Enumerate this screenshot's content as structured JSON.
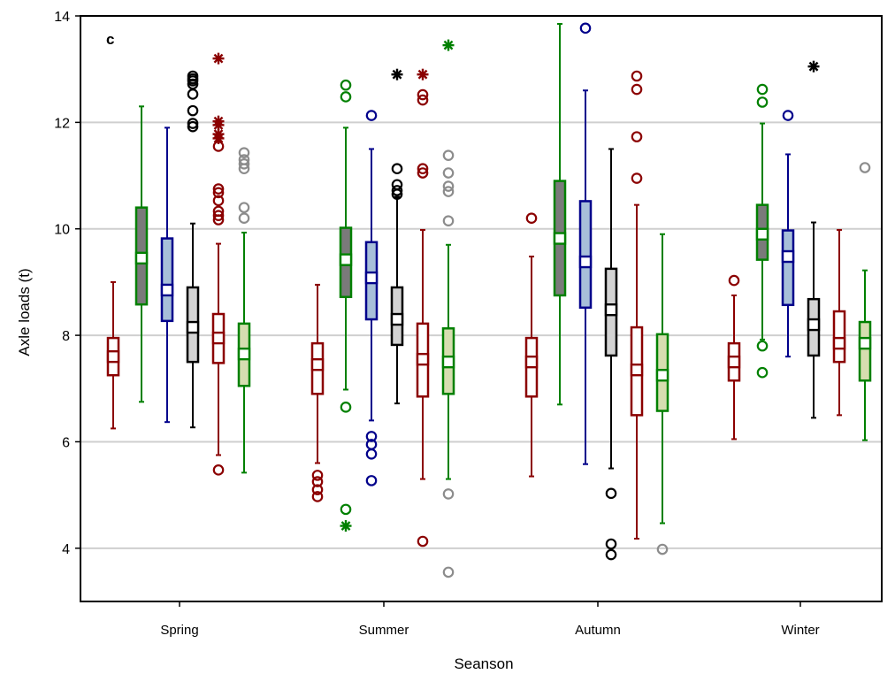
{
  "chart_data": {
    "type": "boxplot",
    "panel_label": "c",
    "xlabel": "Seanson",
    "ylabel": "Axle loads (t)",
    "ylim": [
      3,
      14
    ],
    "yticks": [
      4,
      6,
      8,
      10,
      12,
      14
    ],
    "grid": true,
    "categories": [
      "Spring",
      "Summer",
      "Autumn",
      "Winter"
    ],
    "series": [
      {
        "color": "#8b0000",
        "fill": "#ffffff",
        "boxes": [
          {
            "median": 7.6,
            "q1": 7.25,
            "q3": 7.95,
            "whisker_low": 6.25,
            "whisker_high": 9.0,
            "outliers": [],
            "extremes": []
          },
          {
            "median": 7.45,
            "q1": 6.9,
            "q3": 7.85,
            "whisker_low": 5.6,
            "whisker_high": 8.95,
            "outliers": [
              4.97,
              5.1,
              5.25,
              5.37
            ],
            "extremes": []
          },
          {
            "median": 7.5,
            "q1": 6.85,
            "q3": 7.95,
            "whisker_low": 5.35,
            "whisker_high": 9.48,
            "outliers": [
              10.2
            ],
            "extremes": []
          },
          {
            "median": 7.5,
            "q1": 7.15,
            "q3": 7.85,
            "whisker_low": 6.05,
            "whisker_high": 8.75,
            "outliers": [
              9.03
            ],
            "extremes": []
          }
        ]
      },
      {
        "color": "#008000",
        "fill": "#7a7a7a",
        "boxes": [
          {
            "median": 9.45,
            "q1": 8.58,
            "q3": 10.4,
            "whisker_low": 6.75,
            "whisker_high": 12.3,
            "outliers": [],
            "extremes": []
          },
          {
            "median": 9.42,
            "q1": 8.72,
            "q3": 10.02,
            "whisker_low": 6.98,
            "whisker_high": 11.9,
            "outliers": [
              4.73,
              6.65,
              12.48,
              12.7
            ],
            "extremes": [
              4.42
            ]
          },
          {
            "median": 9.82,
            "q1": 8.75,
            "q3": 10.9,
            "whisker_low": 6.7,
            "whisker_high": 13.85,
            "outliers": [],
            "extremes": []
          },
          {
            "median": 9.9,
            "q1": 9.42,
            "q3": 10.45,
            "whisker_low": 7.92,
            "whisker_high": 11.98,
            "outliers": [
              7.3,
              7.8,
              12.38,
              12.62
            ],
            "extremes": []
          }
        ]
      },
      {
        "color": "#00008b",
        "fill": "#a7bfd9",
        "boxes": [
          {
            "median": 8.85,
            "q1": 8.27,
            "q3": 9.82,
            "whisker_low": 6.37,
            "whisker_high": 11.9,
            "outliers": [],
            "extremes": []
          },
          {
            "median": 9.08,
            "q1": 8.3,
            "q3": 9.75,
            "whisker_low": 6.4,
            "whisker_high": 11.5,
            "outliers": [
              5.27,
              5.77,
              5.95,
              6.1,
              12.13
            ],
            "extremes": []
          },
          {
            "median": 9.38,
            "q1": 8.52,
            "q3": 10.52,
            "whisker_low": 5.58,
            "whisker_high": 12.6,
            "outliers": [
              13.77
            ],
            "extremes": []
          },
          {
            "median": 9.48,
            "q1": 8.57,
            "q3": 9.97,
            "whisker_low": 7.6,
            "whisker_high": 11.4,
            "outliers": [
              12.13
            ],
            "extremes": []
          }
        ]
      },
      {
        "color": "#000000",
        "fill": "#d3d3d3",
        "boxes": [
          {
            "median": 8.15,
            "q1": 7.5,
            "q3": 8.9,
            "whisker_low": 6.27,
            "whisker_high": 10.1,
            "outliers": [
              11.92,
              11.98,
              12.22,
              12.53,
              12.72,
              12.78,
              12.82,
              12.87
            ],
            "extremes": []
          },
          {
            "median": 8.3,
            "q1": 7.82,
            "q3": 8.9,
            "whisker_low": 6.72,
            "whisker_high": 10.6,
            "outliers": [
              10.65,
              10.72,
              10.83,
              11.13
            ],
            "extremes": [
              12.9
            ]
          },
          {
            "median": 8.48,
            "q1": 7.62,
            "q3": 9.25,
            "whisker_low": 5.5,
            "whisker_high": 11.5,
            "outliers": [
              3.88,
              4.08,
              5.03
            ],
            "extremes": []
          },
          {
            "median": 8.2,
            "q1": 7.62,
            "q3": 8.68,
            "whisker_low": 6.45,
            "whisker_high": 10.12,
            "outliers": [],
            "extremes": [
              13.05
            ]
          }
        ]
      },
      {
        "color": "#8b0000",
        "fill": "#ffffff",
        "boxes": [
          {
            "median": 7.95,
            "q1": 7.48,
            "q3": 8.4,
            "whisker_low": 5.75,
            "whisker_high": 9.72,
            "outliers": [
              5.47,
              10.17,
              10.25,
              10.33,
              10.53,
              10.68,
              10.75,
              11.55
            ],
            "extremes": [
              11.7,
              11.78,
              11.95,
              12.02,
              13.2
            ]
          },
          {
            "median": 7.55,
            "q1": 6.85,
            "q3": 8.22,
            "whisker_low": 5.3,
            "whisker_high": 9.98,
            "outliers": [
              4.13,
              11.05,
              11.13,
              12.42,
              12.52
            ],
            "extremes": [
              12.9
            ]
          },
          {
            "median": 7.35,
            "q1": 6.5,
            "q3": 8.15,
            "whisker_low": 4.18,
            "whisker_high": 10.45,
            "outliers": [
              10.95,
              11.73,
              12.62,
              12.87
            ],
            "extremes": []
          },
          {
            "median": 7.85,
            "q1": 7.5,
            "q3": 8.45,
            "whisker_low": 6.5,
            "whisker_high": 9.98,
            "outliers": [],
            "extremes": []
          }
        ]
      },
      {
        "color": "#008000",
        "fill": "#d6ddb0",
        "boxes": [
          {
            "median": 7.65,
            "q1": 7.05,
            "q3": 8.22,
            "whisker_low": 5.42,
            "whisker_high": 9.93,
            "outliers": [],
            "extremes": []
          },
          {
            "median": 7.5,
            "q1": 6.9,
            "q3": 8.13,
            "whisker_low": 5.3,
            "whisker_high": 9.7,
            "outliers": [],
            "extremes": [
              13.45
            ]
          },
          {
            "median": 7.25,
            "q1": 6.58,
            "q3": 8.02,
            "whisker_low": 4.47,
            "whisker_high": 9.9,
            "outliers": [],
            "extremes": []
          },
          {
            "median": 7.85,
            "q1": 7.15,
            "q3": 8.25,
            "whisker_low": 6.03,
            "whisker_high": 9.22,
            "outliers": [],
            "extremes": []
          }
        ]
      }
    ],
    "extra_points": [
      {
        "series": 5,
        "category": 0,
        "values": [
          10.2,
          10.4,
          11.13,
          11.22,
          11.3,
          11.43
        ]
      },
      {
        "series": 5,
        "category": 1,
        "values": [
          3.55,
          5.02,
          10.15,
          10.7,
          10.8,
          11.05,
          11.38
        ]
      },
      {
        "series": 5,
        "category": 2,
        "values": [
          3.98
        ]
      },
      {
        "series": 5,
        "category": 3,
        "values": [
          11.15
        ]
      }
    ]
  }
}
